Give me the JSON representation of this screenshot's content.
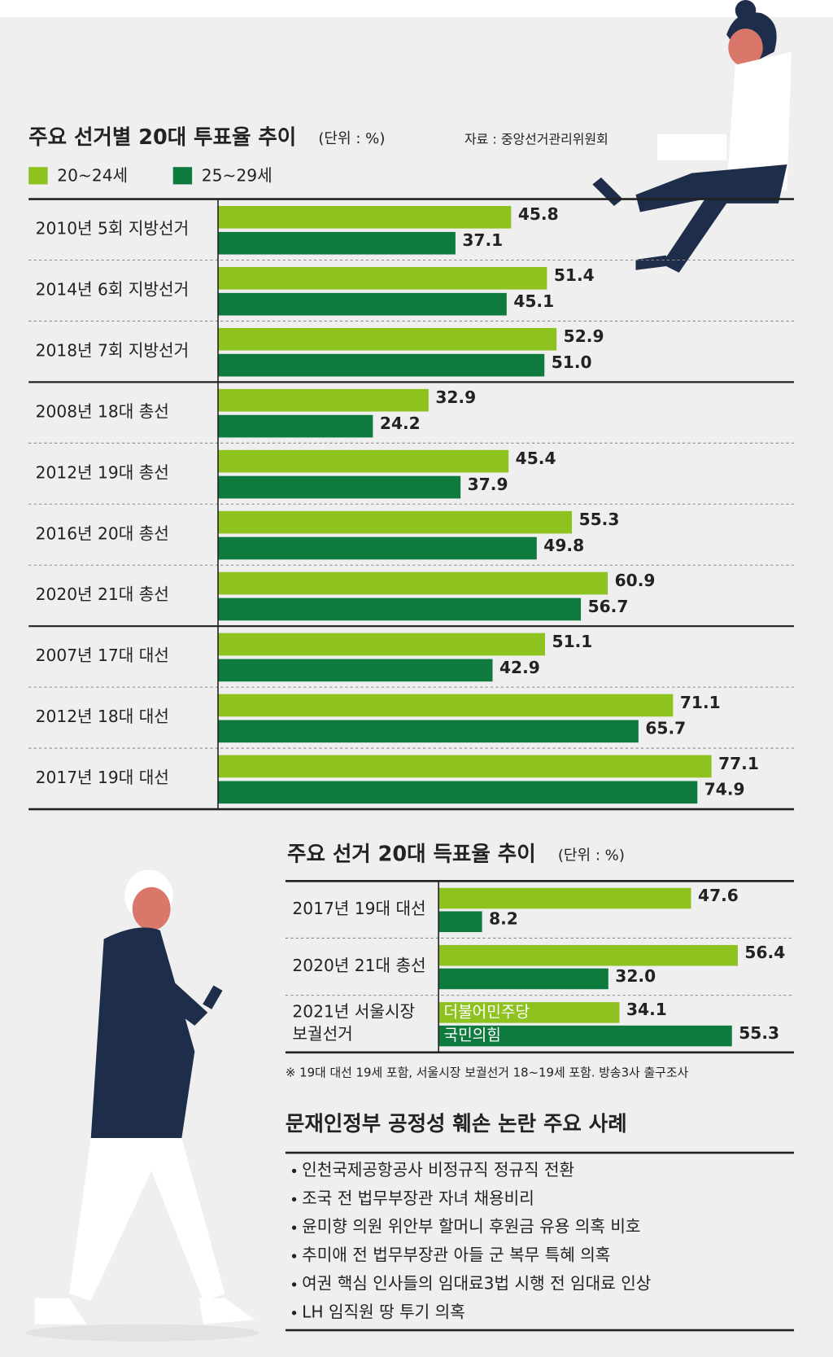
{
  "chart_data": [
    {
      "type": "bar",
      "orientation": "horizontal",
      "title": "주요 선거별 20대 투표율 추이",
      "unit": "(단위 : %)",
      "source": "자료 : 중앙선거관리위원회",
      "categories": [
        "2010년 5회 지방선거",
        "2014년 6회 지방선거",
        "2018년 7회 지방선거",
        "2008년 18대 총선",
        "2012년 19대 총선",
        "2016년 20대 총선",
        "2020년 21대 총선",
        "2007년 17대 대선",
        "2012년 18대 대선",
        "2017년 19대 대선"
      ],
      "series": [
        {
          "name": "20~24세",
          "color": "#8dc21f",
          "values": [
            45.8,
            51.4,
            52.9,
            32.9,
            45.4,
            55.3,
            60.9,
            51.1,
            71.1,
            77.1
          ],
          "value_labels": [
            "45.8",
            "51.4",
            "52.9",
            "32.9",
            "45.4",
            "55.3",
            "60.9",
            "51.1",
            "71.1",
            "77.1"
          ]
        },
        {
          "name": "25~29세",
          "color": "#0e7a3e",
          "values": [
            37.1,
            45.1,
            51.0,
            24.2,
            37.9,
            49.8,
            56.7,
            42.9,
            65.7,
            74.9
          ],
          "value_labels": [
            "37.1",
            "45.1",
            "51.0",
            "24.2",
            "37.9",
            "49.8",
            "56.7",
            "42.9",
            "65.7",
            "74.9"
          ]
        }
      ],
      "xlim": [
        0,
        90
      ]
    },
    {
      "type": "bar",
      "orientation": "horizontal",
      "title": "주요 선거 20대 득표율 추이",
      "unit": "(단위 : %)",
      "categories": [
        [
          "2017년 19대 대선"
        ],
        [
          "2020년 21대 총선"
        ],
        [
          "2021년 서울시장",
          "보궐선거"
        ]
      ],
      "series": [
        {
          "color": "#8dc21f",
          "values": [
            47.6,
            56.4,
            34.1
          ],
          "value_labels": [
            "47.6",
            "56.4",
            "34.1"
          ],
          "inner_labels": [
            null,
            null,
            "더불어민주당"
          ]
        },
        {
          "color": "#0e7a3e",
          "values": [
            8.2,
            32.0,
            55.3
          ],
          "value_labels": [
            "8.2",
            "32.0",
            "55.3"
          ],
          "inner_labels": [
            null,
            null,
            "국민의힘"
          ]
        }
      ],
      "xlim": [
        0,
        67
      ],
      "note": "※ 19대 대선 19세 포함, 서울시장 보궐선거 18~19세 포함. 방송3사 출구조사"
    }
  ],
  "cases": {
    "title": "문재인정부 공정성 훼손 논란 주요 사례",
    "items": [
      "인천국제공항공사 비정규직 정규직 전환",
      "조국 전 법무부장관 자녀 채용비리",
      "윤미향 의원 위안부 할머니 후원금 유용 의혹 비호",
      "추미애 전 법무부장관 아들 군 복무 특혜 의혹",
      "여권 핵심 인사들의 임대료3법 시행 전 임대료 인상",
      "LH 임직원 땅 투기 의혹"
    ]
  }
}
